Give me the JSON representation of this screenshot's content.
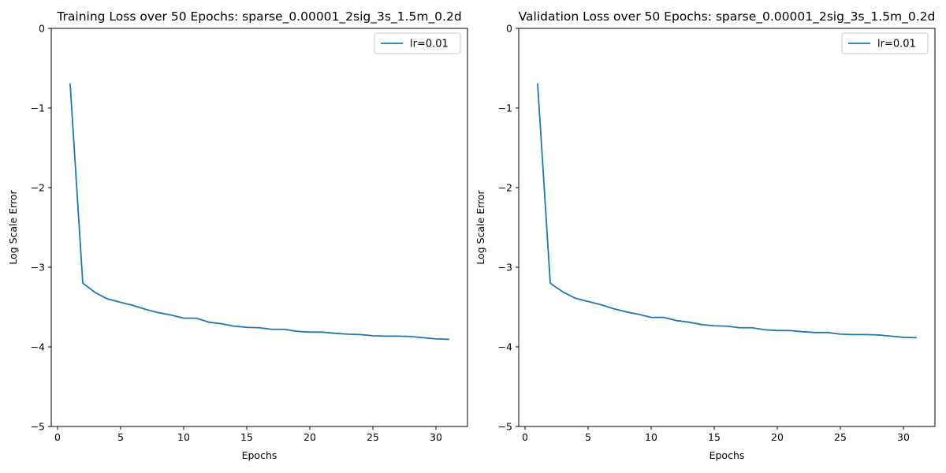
{
  "chart_data": [
    {
      "type": "line",
      "title": "Training Loss over 50 Epochs: sparse_0.00001_2sig_3s_1.5m_0.2d",
      "xlabel": "Epochs",
      "ylabel": "Log Scale Error",
      "xlim": [
        -0.5,
        32.5
      ],
      "ylim": [
        -5,
        0
      ],
      "xticks": [
        0,
        5,
        10,
        15,
        20,
        25,
        30
      ],
      "yticks": [
        0,
        -1,
        -2,
        -3,
        -4,
        -5
      ],
      "xtick_labels": [
        "0",
        "5",
        "10",
        "15",
        "20",
        "25",
        "30"
      ],
      "ytick_labels": [
        "0",
        "−1",
        "−2",
        "−3",
        "−4",
        "−5"
      ],
      "legend_position": "top-right",
      "series": [
        {
          "name": "lr=0.01",
          "color": "#1f77b4",
          "x": [
            1,
            2,
            3,
            4,
            5,
            6,
            7,
            8,
            9,
            10,
            11,
            12,
            13,
            14,
            15,
            16,
            17,
            18,
            19,
            20,
            21,
            22,
            23,
            24,
            25,
            26,
            27,
            28,
            29,
            30,
            31
          ],
          "values": [
            -0.7,
            -3.2,
            -3.32,
            -3.4,
            -3.44,
            -3.48,
            -3.53,
            -3.57,
            -3.6,
            -3.64,
            -3.64,
            -3.69,
            -3.71,
            -3.74,
            -3.755,
            -3.76,
            -3.78,
            -3.78,
            -3.805,
            -3.815,
            -3.815,
            -3.83,
            -3.84,
            -3.845,
            -3.86,
            -3.865,
            -3.865,
            -3.87,
            -3.885,
            -3.9,
            -3.905
          ]
        }
      ]
    },
    {
      "type": "line",
      "title": "Validation Loss over 50 Epochs: sparse_0.00001_2sig_3s_1.5m_0.2d",
      "xlabel": "Epochs",
      "ylabel": "Log Scale Error",
      "xlim": [
        -0.5,
        32.5
      ],
      "ylim": [
        -5,
        0
      ],
      "xticks": [
        0,
        5,
        10,
        15,
        20,
        25,
        30
      ],
      "yticks": [
        0,
        -1,
        -2,
        -3,
        -4,
        -5
      ],
      "xtick_labels": [
        "0",
        "5",
        "10",
        "15",
        "20",
        "25",
        "30"
      ],
      "ytick_labels": [
        "0",
        "−1",
        "−2",
        "−3",
        "−4",
        "−5"
      ],
      "legend_position": "top-right",
      "series": [
        {
          "name": "lr=0.01",
          "color": "#1f77b4",
          "x": [
            1,
            2,
            3,
            4,
            5,
            6,
            7,
            8,
            9,
            10,
            11,
            12,
            13,
            14,
            15,
            16,
            17,
            18,
            19,
            20,
            21,
            22,
            23,
            24,
            25,
            26,
            27,
            28,
            29,
            30,
            31
          ],
          "values": [
            -0.7,
            -3.2,
            -3.31,
            -3.39,
            -3.43,
            -3.47,
            -3.52,
            -3.56,
            -3.59,
            -3.63,
            -3.63,
            -3.67,
            -3.69,
            -3.72,
            -3.735,
            -3.74,
            -3.76,
            -3.76,
            -3.785,
            -3.795,
            -3.795,
            -3.81,
            -3.82,
            -3.82,
            -3.84,
            -3.845,
            -3.845,
            -3.85,
            -3.865,
            -3.88,
            -3.885
          ]
        }
      ]
    }
  ]
}
